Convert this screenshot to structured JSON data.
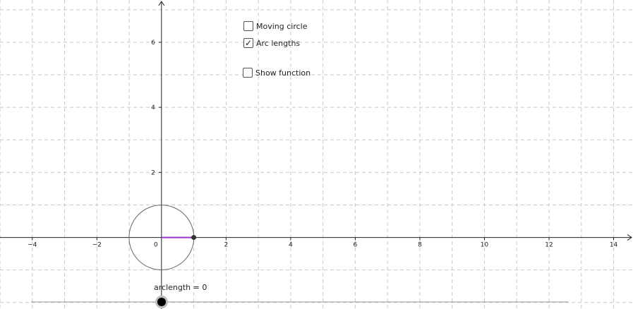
{
  "checkboxes": [
    {
      "id": "moving-circle",
      "label": "Moving circle",
      "checked": false
    },
    {
      "id": "arc-lengths",
      "label": "Arc lengths",
      "checked": true
    },
    {
      "id": "show-function",
      "label": "Show function",
      "checked": false
    }
  ],
  "check_mark": "✓",
  "slider": {
    "name": "arclength",
    "value": 0,
    "label": "arclength = 0"
  },
  "graph": {
    "x_range": [
      -5,
      14.6
    ],
    "y_range": [
      -2.2,
      7.3
    ],
    "x_ticks": [
      -4,
      -2,
      0,
      2,
      4,
      6,
      8,
      10,
      12,
      14
    ],
    "y_ticks": [
      2,
      4,
      6
    ],
    "origin_label": "0",
    "grid": true,
    "circle": {
      "center": [
        0,
        0
      ],
      "radius": 1
    },
    "point": [
      1,
      0
    ],
    "arc_segment": {
      "from": [
        0,
        0
      ],
      "to": [
        1,
        0
      ]
    }
  },
  "colors": {
    "grid": "#c8c8c8",
    "axis": "#222222",
    "circle": "#666666",
    "arc_segment": "#9933cc",
    "point": "#333333"
  }
}
